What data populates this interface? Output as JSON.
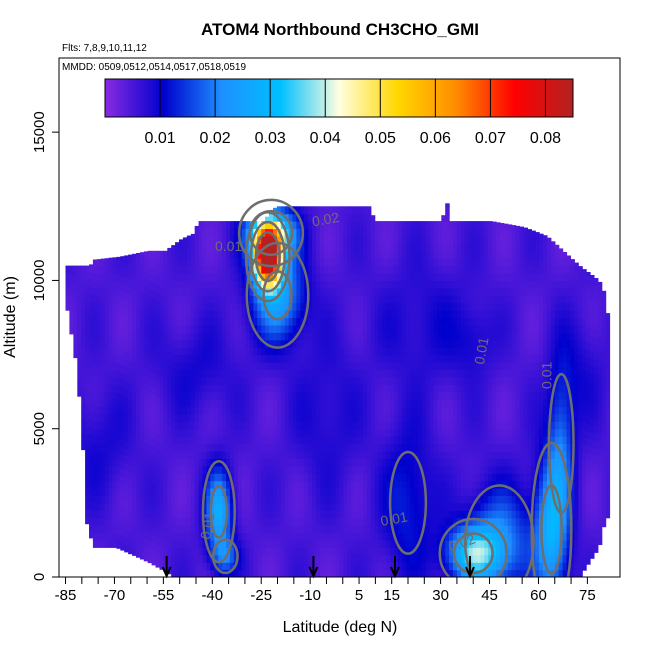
{
  "chart_data": {
    "type": "heatmap",
    "title": "ATOM4 Northbound CH3CHO_GMI",
    "subtitle_flights": "Flts: 7,8,9,10,11,12",
    "subtitle_dates": "MMDD: 0509,0512,0514,0517,0518,0519",
    "xlabel": "Latitude (deg N)",
    "ylabel": "Altitude (m)",
    "xlim": [
      -87,
      85
    ],
    "ylim": [
      0,
      17500
    ],
    "x_ticks": [
      -85,
      -70,
      -55,
      -40,
      -25,
      -10,
      5,
      15,
      30,
      45,
      60,
      75
    ],
    "x_minor_step": 5,
    "y_ticks": [
      0,
      5000,
      10000,
      15000
    ],
    "colorbar": {
      "range": [
        0,
        0.085
      ],
      "ticks": [
        0.01,
        0.02,
        0.03,
        0.04,
        0.05,
        0.06,
        0.07,
        0.08
      ],
      "tick_labels": [
        "0.01",
        "0.02",
        "0.03",
        "0.04",
        "0.05",
        "0.06",
        "0.07",
        "0.08"
      ],
      "colors": [
        "#8a2be2",
        "#0000cd",
        "#1e90ff",
        "#00bfff",
        "#ffffe0",
        "#ffd700",
        "#ff8c00",
        "#ff0000",
        "#b22222"
      ]
    },
    "contour_labels": [
      {
        "text": "0.01",
        "x": -35,
        "y": 11000,
        "angle": 0
      },
      {
        "text": "0.02",
        "x": -5,
        "y": 11900,
        "angle": -10
      },
      {
        "text": "0.01",
        "x": 44,
        "y": 7600,
        "angle": -80
      },
      {
        "text": "0.01",
        "x": 64,
        "y": 6800,
        "angle": -90
      },
      {
        "text": "0.01",
        "x": 16,
        "y": 1800,
        "angle": -10
      },
      {
        "text": "0.02",
        "x": 37,
        "y": 1000,
        "angle": -20
      },
      {
        "text": "0.01",
        "x": -40,
        "y": 1700,
        "angle": -80
      }
    ],
    "flight_markers_latitude": [
      -54,
      -9,
      16,
      39
    ],
    "background_value": 0.005,
    "hotspots": [
      {
        "x": -23,
        "y": 10800,
        "sx": 4,
        "sy": 900,
        "v": 0.08
      },
      {
        "x": -22,
        "y": 11600,
        "sx": 7,
        "sy": 800,
        "v": 0.035
      },
      {
        "x": -20,
        "y": 9500,
        "sx": 8,
        "sy": 1500,
        "v": 0.02
      },
      {
        "x": -38,
        "y": 2200,
        "sx": 4,
        "sy": 1400,
        "v": 0.022
      },
      {
        "x": -36,
        "y": 700,
        "sx": 4,
        "sy": 600,
        "v": 0.012
      },
      {
        "x": 40,
        "y": 800,
        "sx": 8,
        "sy": 900,
        "v": 0.026
      },
      {
        "x": 48,
        "y": 1200,
        "sx": 10,
        "sy": 1800,
        "v": 0.015
      },
      {
        "x": 64,
        "y": 1600,
        "sx": 5,
        "sy": 2400,
        "v": 0.022
      },
      {
        "x": 67,
        "y": 4500,
        "sx": 4,
        "sy": 2500,
        "v": 0.012
      },
      {
        "x": 20,
        "y": 2500,
        "sx": 8,
        "sy": 2500,
        "v": 0.008
      }
    ],
    "lowspots": [
      {
        "x": -75,
        "y": 4500,
        "sx": 10,
        "sy": 1800
      },
      {
        "x": -45,
        "y": 7000,
        "sx": 12,
        "sy": 1500
      },
      {
        "x": -5,
        "y": 5500,
        "sx": 10,
        "sy": 2500
      },
      {
        "x": 25,
        "y": 8500,
        "sx": 15,
        "sy": 2000
      },
      {
        "x": 40,
        "y": 8000,
        "sx": 6,
        "sy": 1200
      },
      {
        "x": 72,
        "y": 7000,
        "sx": 8,
        "sy": 1800
      }
    ],
    "envelope": [
      {
        "x": -85,
        "top": 10500
      },
      {
        "x": -79,
        "top": 10500
      },
      {
        "x": -78,
        "top": 10500
      },
      {
        "x": -77,
        "top": 10700
      },
      {
        "x": -69,
        "top": 10800
      },
      {
        "x": -60,
        "top": 11000
      },
      {
        "x": -55,
        "top": 11000
      },
      {
        "x": -50,
        "top": 11400
      },
      {
        "x": -46,
        "top": 11600
      },
      {
        "x": -45,
        "top": 12000
      },
      {
        "x": -25,
        "top": 12000
      },
      {
        "x": -21,
        "top": 12500
      },
      {
        "x": 8,
        "top": 12500
      },
      {
        "x": 9,
        "top": 12000
      },
      {
        "x": 30,
        "top": 12000
      },
      {
        "x": 31,
        "top": 13000
      },
      {
        "x": 32,
        "top": 12000
      },
      {
        "x": 45,
        "top": 12000
      },
      {
        "x": 55,
        "top": 11800
      },
      {
        "x": 62,
        "top": 11500
      },
      {
        "x": 67,
        "top": 11000
      },
      {
        "x": 72,
        "top": 10500
      },
      {
        "x": 78,
        "top": 10000
      },
      {
        "x": 80,
        "top": 9500
      },
      {
        "x": 81,
        "top": 8500
      }
    ],
    "bottom_envelope": [
      {
        "x": -85,
        "bottom": 9000
      },
      {
        "x": -82,
        "bottom": 7000
      },
      {
        "x": -80,
        "bottom": 4000
      },
      {
        "x": -79,
        "bottom": 1800
      },
      {
        "x": -77,
        "bottom": 1000
      },
      {
        "x": -70,
        "bottom": 1000
      },
      {
        "x": -60,
        "bottom": 500
      },
      {
        "x": -52,
        "bottom": 0
      },
      {
        "x": 72,
        "bottom": 0
      },
      {
        "x": 78,
        "bottom": 1000
      },
      {
        "x": 80,
        "bottom": 2000
      },
      {
        "x": 81,
        "bottom": 2000
      }
    ]
  }
}
